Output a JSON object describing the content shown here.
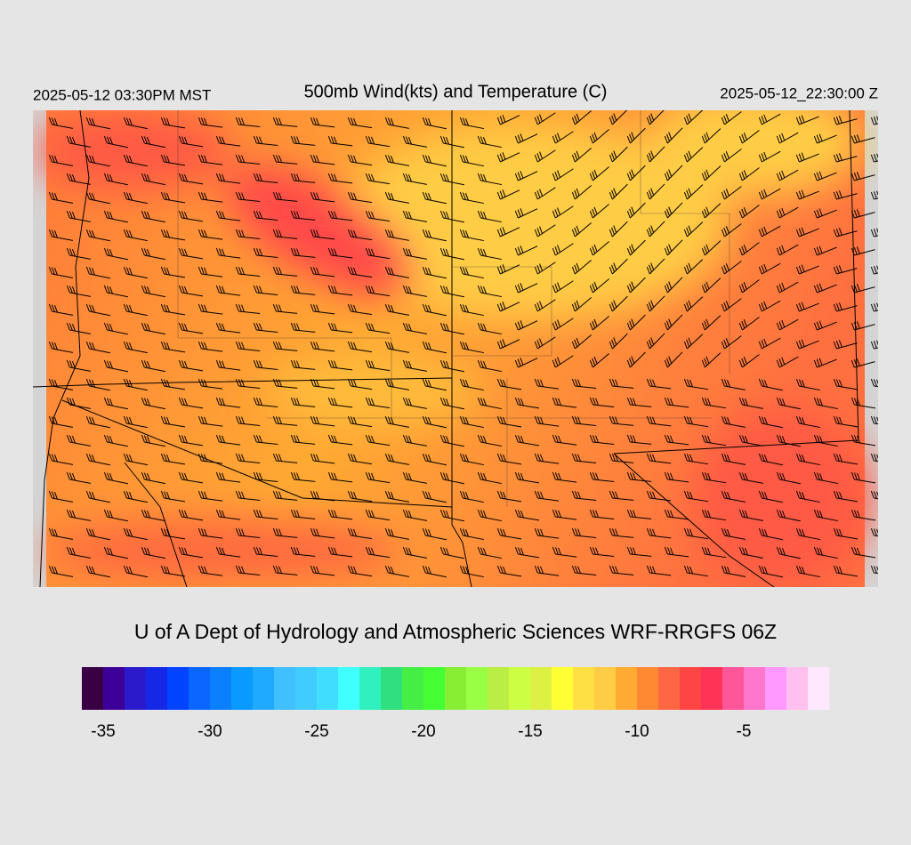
{
  "header": {
    "left": "2025-05-12 03:30PM MST",
    "title": "500mb Wind(kts) and Temperature (C)",
    "right": "2025-05-12_22:30:00 Z"
  },
  "credit": "U of A Dept of Hydrology and Atmospheric Sciences WRF-RRGFS 06Z",
  "colorbar": {
    "range": [
      -36,
      -1
    ],
    "colors": [
      "#3a0044",
      "#3c0099",
      "#2a1acc",
      "#1428e6",
      "#0044ff",
      "#0a66ff",
      "#0a80ff",
      "#0a99ff",
      "#20aaff",
      "#40c0ff",
      "#40ccff",
      "#40ddff",
      "#40ffff",
      "#30f0c0",
      "#30e080",
      "#44ee44",
      "#44ff33",
      "#88ee33",
      "#99ff44",
      "#bbee44",
      "#ccff44",
      "#ddf044",
      "#ffff33",
      "#ffe044",
      "#ffcc44",
      "#ffaa33",
      "#ff8833",
      "#ff6644",
      "#ff4444",
      "#ff3355",
      "#ff5599",
      "#ff77cc",
      "#ff99ff",
      "#ffc0f0",
      "#ffe8ff"
    ],
    "ticks": [
      -35,
      -30,
      -25,
      -20,
      -15,
      -10,
      -5
    ]
  }
}
